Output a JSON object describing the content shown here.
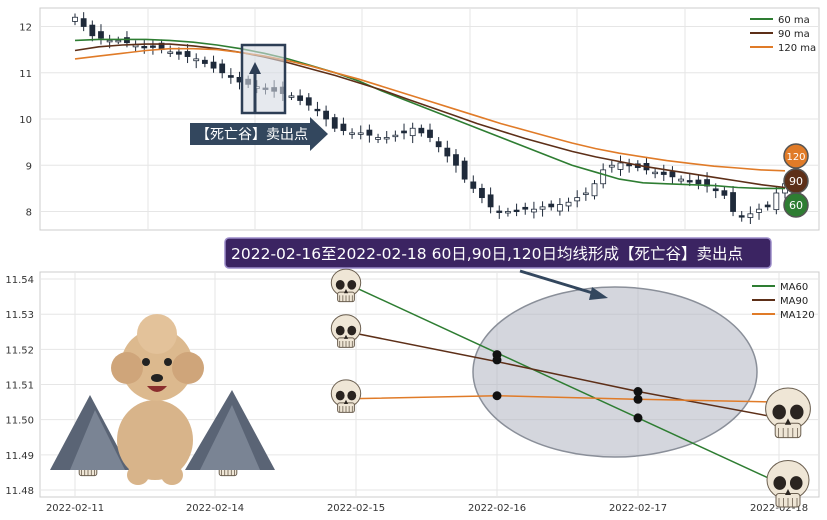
{
  "chart_data": [
    {
      "type": "candlestick",
      "ylim": [
        7.6,
        12.4
      ],
      "yticks": [
        "8",
        "9",
        "10",
        "11",
        "12"
      ],
      "ytick_values": [
        8,
        9,
        10,
        11,
        12
      ],
      "legend": [
        {
          "name": "60 ma",
          "color": "#2e7d32"
        },
        {
          "name": "90 ma",
          "color": "#5d2f18"
        },
        {
          "name": "120 ma",
          "color": "#e07b28"
        }
      ],
      "close_series": [
        12.2,
        12.0,
        11.8,
        11.75,
        11.7,
        11.7,
        11.65,
        11.6,
        11.55,
        11.55,
        11.5,
        11.45,
        11.4,
        11.35,
        11.3,
        11.2,
        11.1,
        11.0,
        10.9,
        10.8,
        10.75,
        10.7,
        10.65,
        10.6,
        10.55,
        10.5,
        10.4,
        10.3,
        10.2,
        10.0,
        9.8,
        9.75,
        9.7,
        9.7,
        9.65,
        9.6,
        9.6,
        9.65,
        9.7,
        9.8,
        9.7,
        9.6,
        9.4,
        9.2,
        9.0,
        8.7,
        8.5,
        8.3,
        8.1,
        8.0,
        8.0,
        8.0,
        8.05,
        8.05,
        8.1,
        8.1,
        8.15,
        8.2,
        8.3,
        8.4,
        8.6,
        8.9,
        9.0,
        9.05,
        9.0,
        8.95,
        8.9,
        8.85,
        8.8,
        8.75,
        8.7,
        8.65,
        8.6,
        8.55,
        8.45,
        8.35,
        8.0,
        7.9,
        7.95,
        8.05,
        8.1,
        8.4,
        8.6
      ],
      "ma60_series": [
        11.7,
        11.72,
        11.72,
        11.72,
        11.7,
        11.66,
        11.6,
        11.52,
        11.42,
        11.3,
        11.15,
        11.0,
        10.82,
        10.6,
        10.4,
        10.2,
        10.0,
        9.8,
        9.6,
        9.4,
        9.2,
        9.0,
        8.85,
        8.7,
        8.62,
        8.6,
        8.58,
        8.56,
        8.52,
        8.5,
        8.5
      ],
      "ma90_series": [
        11.48,
        11.56,
        11.6,
        11.62,
        11.62,
        11.58,
        11.52,
        11.44,
        11.34,
        11.22,
        11.08,
        10.94,
        10.78,
        10.62,
        10.44,
        10.26,
        10.08,
        9.9,
        9.74,
        9.58,
        9.44,
        9.3,
        9.18,
        9.08,
        8.98,
        8.9,
        8.82,
        8.74,
        8.66,
        8.58,
        8.52
      ],
      "ma120_series": [
        11.3,
        11.36,
        11.42,
        11.48,
        11.52,
        11.52,
        11.5,
        11.44,
        11.36,
        11.26,
        11.14,
        11.0,
        10.86,
        10.7,
        10.54,
        10.38,
        10.22,
        10.06,
        9.9,
        9.76,
        9.62,
        9.48,
        9.36,
        9.26,
        9.18,
        9.1,
        9.04,
        8.98,
        8.94,
        8.9,
        8.88
      ],
      "badges": [
        "120",
        "90",
        "60"
      ],
      "annotation": "【死亡谷】卖出点"
    },
    {
      "type": "line",
      "ylim": [
        11.478,
        11.542
      ],
      "yticks": [
        "11.54",
        "11.53",
        "11.52",
        "11.51",
        "11.50",
        "11.49",
        "11.48"
      ],
      "ytick_values": [
        11.54,
        11.53,
        11.52,
        11.51,
        11.5,
        11.49,
        11.48
      ],
      "x_labels": [
        "2022-02-11",
        "2022-02-14",
        "2022-02-15",
        "2022-02-16",
        "2022-02-17",
        "2022-02-18"
      ],
      "series": [
        {
          "name": "MA60",
          "color": "#2e7d32",
          "x_index": [
            2,
            3,
            4,
            5
          ],
          "values": [
            11.5375,
            11.519,
            11.5005,
            11.482
          ]
        },
        {
          "name": "MA90",
          "color": "#5d2f18",
          "x_index": [
            2,
            3,
            4,
            5
          ],
          "values": [
            11.5245,
            11.5165,
            11.508,
            11.5005
          ]
        },
        {
          "name": "MA120",
          "color": "#e07b28",
          "x_index": [
            2,
            3,
            4,
            5
          ],
          "values": [
            11.506,
            11.5068,
            11.5058,
            11.505
          ]
        }
      ],
      "markers": [
        {
          "x_index": 3,
          "y": 11.5185
        },
        {
          "x_index": 3,
          "y": 11.517
        },
        {
          "x_index": 3,
          "y": 11.5068
        },
        {
          "x_index": 4,
          "y": 11.508
        },
        {
          "x_index": 4,
          "y": 11.5058
        },
        {
          "x_index": 4,
          "y": 11.5005
        }
      ],
      "title_banner": "2022-02-16至2022-02-18 60日,90日,120日均线形成【死亡谷】卖出点"
    }
  ]
}
